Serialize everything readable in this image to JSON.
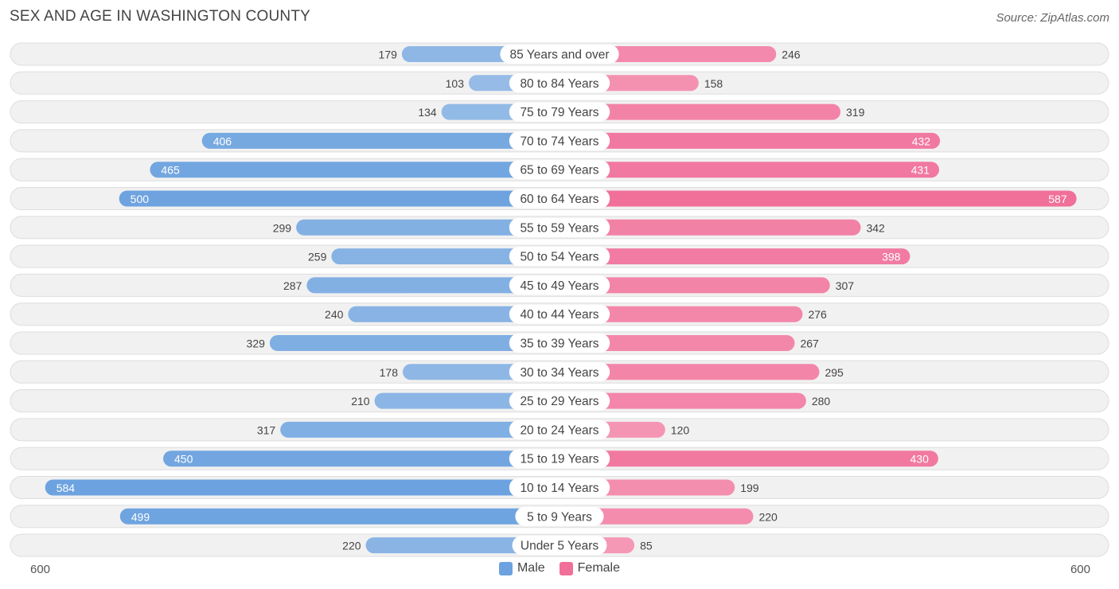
{
  "title": "SEX AND AGE IN WASHINGTON COUNTY",
  "source": "Source: ZipAtlas.com",
  "legend": {
    "male": "Male",
    "female": "Female"
  },
  "axis": {
    "left_label": "600",
    "right_label": "600"
  },
  "colors": {
    "male": "#6ca2df",
    "male_light": "#a9c8ea",
    "female": "#f0709a",
    "female_light": "#f7a9c2",
    "row_bg": "#f1f1f1",
    "row_border": "#dddddd"
  },
  "chart_data": {
    "type": "bar",
    "orientation": "horizontal-diverging",
    "title": "SEX AND AGE IN WASHINGTON COUNTY",
    "xlim": [
      -600,
      600
    ],
    "categories": [
      "85 Years and over",
      "80 to 84 Years",
      "75 to 79 Years",
      "70 to 74 Years",
      "65 to 69 Years",
      "60 to 64 Years",
      "55 to 59 Years",
      "50 to 54 Years",
      "45 to 49 Years",
      "40 to 44 Years",
      "35 to 39 Years",
      "30 to 34 Years",
      "25 to 29 Years",
      "20 to 24 Years",
      "15 to 19 Years",
      "10 to 14 Years",
      "5 to 9 Years",
      "Under 5 Years"
    ],
    "series": [
      {
        "name": "Male",
        "values": [
          179,
          103,
          134,
          406,
          465,
          500,
          299,
          259,
          287,
          240,
          329,
          178,
          210,
          317,
          450,
          584,
          499,
          220
        ]
      },
      {
        "name": "Female",
        "values": [
          246,
          158,
          319,
          432,
          431,
          587,
          342,
          398,
          307,
          276,
          267,
          295,
          280,
          120,
          430,
          199,
          220,
          85
        ]
      }
    ]
  }
}
